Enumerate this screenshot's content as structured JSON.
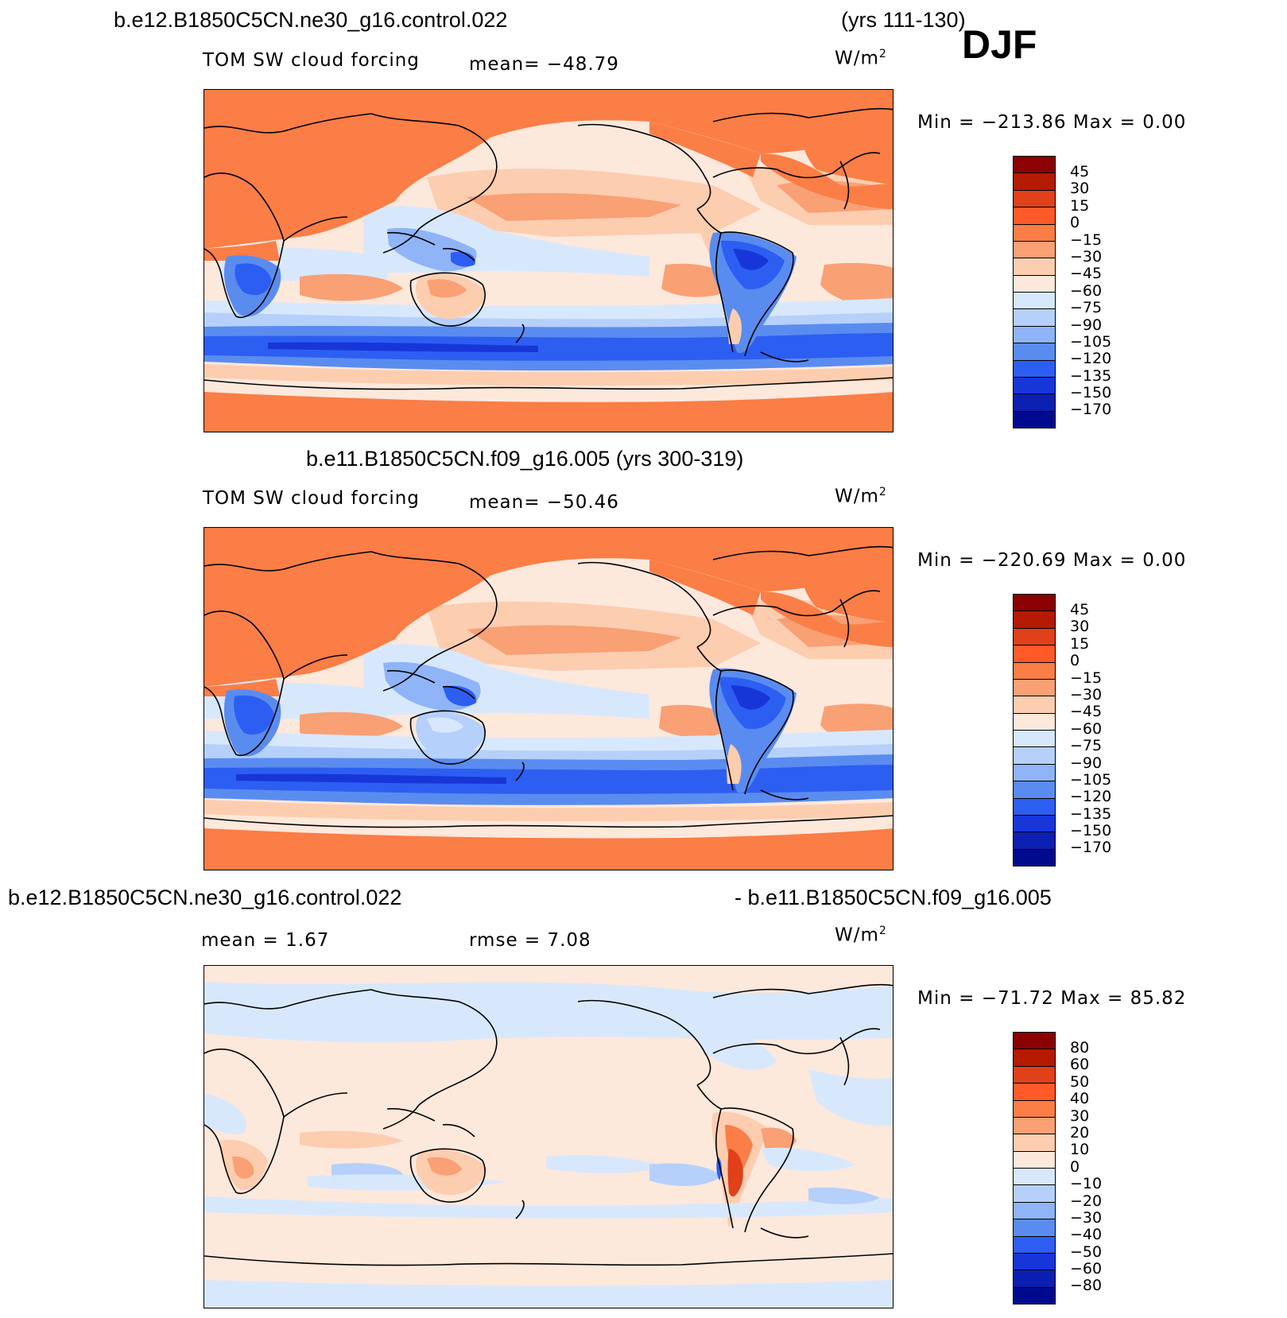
{
  "season": "DJF",
  "panels": [
    {
      "title_left": "b.e12.B1850C5CN.ne30_g16.control.022",
      "title_right": "(yrs 111-130)",
      "variable": "TOM SW cloud forcing",
      "stat1": "mean= −48.79",
      "stat2": "",
      "units": "W/m",
      "units_exp": "2",
      "minmax": "Min = −213.86 Max =    0.00",
      "colorbar_labels": [
        "45",
        "30",
        "15",
        "0",
        "−15",
        "−30",
        "−45",
        "−60",
        "−75",
        "−90",
        "−105",
        "−120",
        "−135",
        "−150",
        "−170"
      ],
      "colorbar_colors": [
        "#8b0000",
        "#b41a00",
        "#e0401a",
        "#ff5a28",
        "#fa7e46",
        "#f9a075",
        "#fdcdb0",
        "#fde8dc",
        "#d8e8fc",
        "#b5d0fa",
        "#8fb4f7",
        "#5a8cf0",
        "#2d5ef2",
        "#1836d8",
        "#0b1fb0",
        "#000a8c"
      ],
      "legend_labels": []
    },
    {
      "title_left": "b.e11.B1850C5CN.f09_g16.005 (yrs 300-319)",
      "title_right": "",
      "variable": "TOM SW cloud forcing",
      "stat1": "mean= −50.46",
      "stat2": "",
      "units": "W/m",
      "units_exp": "2",
      "minmax": "Min = −220.69 Max =    0.00",
      "colorbar_labels": [
        "45",
        "30",
        "15",
        "0",
        "−15",
        "−30",
        "−45",
        "−60",
        "−75",
        "−90",
        "−105",
        "−120",
        "−135",
        "−150",
        "−170"
      ],
      "colorbar_colors": [
        "#8b0000",
        "#b41a00",
        "#e0401a",
        "#ff5a28",
        "#fa7e46",
        "#f9a075",
        "#fdcdb0",
        "#fde8dc",
        "#d8e8fc",
        "#b5d0fa",
        "#8fb4f7",
        "#5a8cf0",
        "#2d5ef2",
        "#1836d8",
        "#0b1fb0",
        "#000a8c"
      ]
    },
    {
      "title_left": "b.e12.B1850C5CN.ne30_g16.control.022",
      "title_right": "- b.e11.B1850C5CN.f09_g16.005",
      "variable": "",
      "stat1": "mean =    1.67",
      "stat2": "rmse =    7.08",
      "units": "W/m",
      "units_exp": "2",
      "minmax": "Min = −71.72 Max =  85.82",
      "colorbar_labels": [
        "80",
        "60",
        "50",
        "40",
        "30",
        "20",
        "10",
        "0",
        "−10",
        "−20",
        "−30",
        "−40",
        "−50",
        "−60",
        "−80"
      ],
      "colorbar_colors": [
        "#8b0000",
        "#b41a00",
        "#e0401a",
        "#ff5a28",
        "#fa7e46",
        "#f9a075",
        "#fdcdb0",
        "#fde8dc",
        "#d8e8fc",
        "#b5d0fa",
        "#8fb4f7",
        "#5a8cf0",
        "#2d5ef2",
        "#1836d8",
        "#0b1fb0",
        "#000a8c"
      ]
    }
  ],
  "palette": {
    "land_warm": "#fa7e46",
    "ocean_light": "#fde8dc",
    "ocean_blue": "#b5d0fa",
    "storm_band": "#2d5ef2",
    "deep_blue": "#1836d8",
    "salmon": "#f9a075",
    "coast": "#000000"
  }
}
